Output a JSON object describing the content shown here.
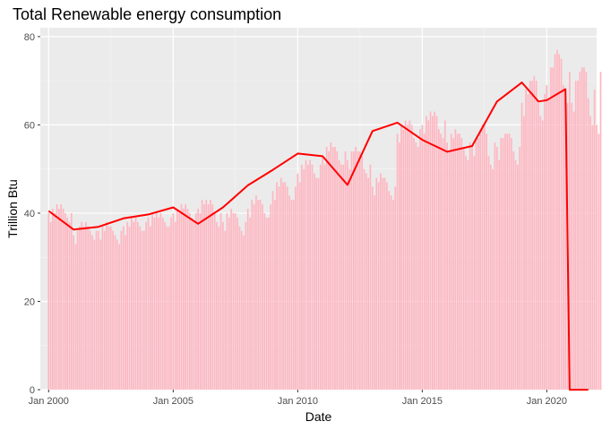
{
  "chart_data": {
    "type": "bar",
    "title": "Total Renewable energy consumption",
    "xlabel": "Date",
    "ylabel": "Trillion Btu",
    "ylim": [
      0,
      82
    ],
    "xlim": [
      "1999-09-01",
      "2022-01-01"
    ],
    "x_ticks": [
      {
        "date": "2000-01-01",
        "label": "Jan 2000"
      },
      {
        "date": "2005-01-01",
        "label": "Jan 2005"
      },
      {
        "date": "2010-01-01",
        "label": "Jan 2010"
      },
      {
        "date": "2015-01-01",
        "label": "Jan 2015"
      },
      {
        "date": "2020-01-01",
        "label": "Jan 2020"
      }
    ],
    "y_ticks": [
      0,
      20,
      40,
      60,
      80
    ],
    "grid": true,
    "legend": "none",
    "series": [
      {
        "kind": "bar",
        "color": "#ffb6c1",
        "start": "2000-01",
        "frequency": "monthly",
        "values": [
          40,
          38,
          41,
          40,
          42,
          41,
          42,
          41,
          40,
          39,
          38,
          40,
          35,
          33,
          36,
          37,
          38,
          37,
          38,
          37,
          36,
          35,
          34,
          36,
          36,
          34,
          37,
          36,
          38,
          37,
          37,
          36,
          35,
          34,
          33,
          36,
          37,
          35,
          38,
          37,
          39,
          38,
          39,
          38,
          37,
          36,
          36,
          38,
          39,
          37,
          40,
          39,
          40,
          39,
          40,
          39,
          38,
          37,
          37,
          39,
          40,
          38,
          41,
          40,
          42,
          41,
          42,
          41,
          40,
          39,
          38,
          40,
          41,
          40,
          43,
          42,
          43,
          42,
          43,
          42,
          40,
          38,
          37,
          40,
          38,
          36,
          40,
          39,
          41,
          40,
          40,
          39,
          37,
          36,
          35,
          38,
          41,
          39,
          43,
          42,
          44,
          43,
          43,
          42,
          40,
          39,
          39,
          42,
          45,
          43,
          47,
          46,
          48,
          47,
          47,
          46,
          44,
          43,
          43,
          46,
          49,
          47,
          51,
          50,
          52,
          51,
          52,
          51,
          49,
          48,
          48,
          51,
          53,
          51,
          55,
          54,
          56,
          55,
          55,
          54,
          52,
          51,
          51,
          54,
          52,
          50,
          54,
          54,
          55,
          54,
          54,
          53,
          50,
          49,
          48,
          51,
          46,
          44,
          48,
          47,
          49,
          48,
          48,
          47,
          45,
          44,
          43,
          46,
          58,
          56,
          60,
          59,
          61,
          60,
          61,
          60,
          57,
          56,
          55,
          59,
          60,
          58,
          62,
          61,
          63,
          62,
          63,
          62,
          59,
          58,
          57,
          61,
          56,
          54,
          58,
          57,
          59,
          58,
          58,
          57,
          55,
          53,
          52,
          56,
          55,
          53,
          57,
          57,
          59,
          60,
          60,
          58,
          53,
          51,
          50,
          56,
          55,
          52,
          57,
          57,
          58,
          58,
          58,
          57,
          54,
          52,
          51,
          55,
          65,
          62,
          68,
          67,
          70,
          70,
          71,
          70,
          65,
          62,
          61,
          67,
          69,
          66,
          73,
          73,
          76,
          77,
          76,
          75,
          69,
          66,
          65,
          72,
          65,
          63,
          70,
          70,
          72,
          73,
          73,
          72,
          66,
          62,
          60,
          68,
          60,
          58,
          72,
          71,
          75,
          76,
          77,
          75,
          70,
          68
        ]
      },
      {
        "kind": "line",
        "color": "#ff0000",
        "points": [
          [
            "2000-01-01",
            40.5
          ],
          [
            "2001-01-01",
            36.3
          ],
          [
            "2002-01-01",
            36.9
          ],
          [
            "2003-01-01",
            38.8
          ],
          [
            "2004-01-01",
            39.7
          ],
          [
            "2005-01-01",
            41.3
          ],
          [
            "2006-01-01",
            37.6
          ],
          [
            "2007-01-01",
            41.3
          ],
          [
            "2008-01-01",
            46.3
          ],
          [
            "2009-01-01",
            49.8
          ],
          [
            "2010-01-01",
            53.5
          ],
          [
            "2011-01-01",
            52.9
          ],
          [
            "2012-01-01",
            46.4
          ],
          [
            "2013-01-01",
            58.6
          ],
          [
            "2014-01-01",
            60.5
          ],
          [
            "2015-01-01",
            56.6
          ],
          [
            "2016-01-01",
            53.9
          ],
          [
            "2017-01-01",
            55.2
          ],
          [
            "2018-01-01",
            65.3
          ],
          [
            "2019-01-01",
            69.6
          ],
          [
            "2019-09-01",
            65.3
          ],
          [
            "2020-01-01",
            65.6
          ],
          [
            "2020-10-01",
            68.1
          ],
          [
            "2020-12-01",
            0
          ],
          [
            "2021-09-01",
            0
          ]
        ]
      }
    ]
  }
}
